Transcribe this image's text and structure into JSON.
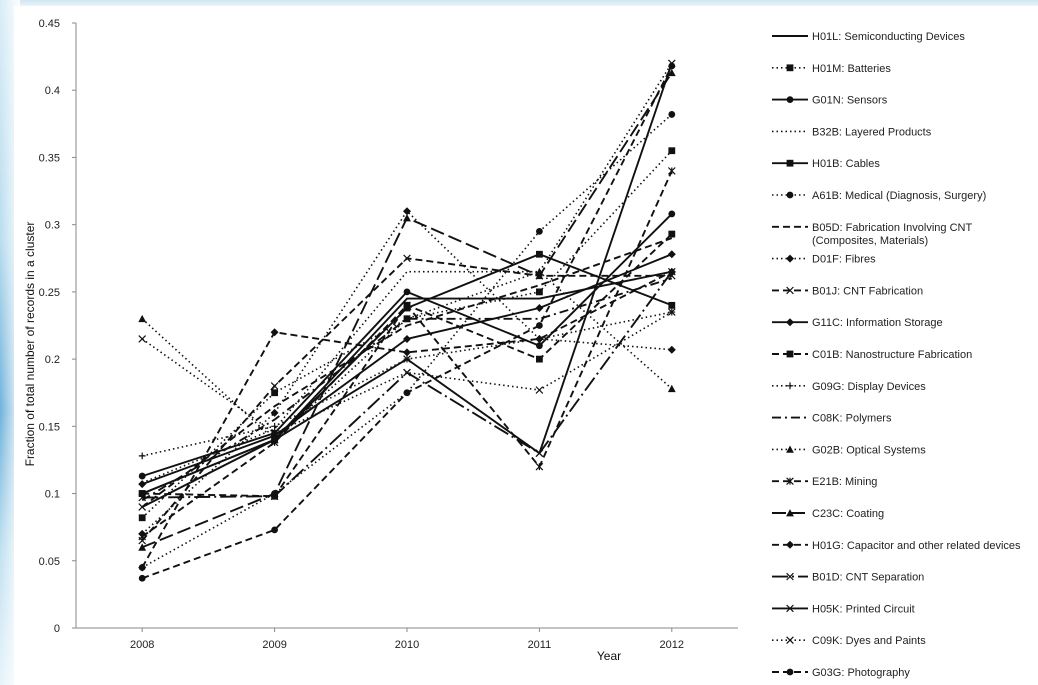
{
  "chart_data": {
    "type": "line",
    "title": "",
    "xlabel": "Year",
    "ylabel": "Fraction of total number of records in a cluster",
    "x": [
      "2008",
      "2009",
      "2010",
      "2011",
      "2012"
    ],
    "ylim": [
      0,
      0.45
    ],
    "yticks": [
      "0",
      "0.05",
      "0.1",
      "0.15",
      "0.2",
      "0.25",
      "0.3",
      "0.35",
      "0.4",
      "0.45"
    ],
    "grid": false,
    "legend_position": "right",
    "series": [
      {
        "name": "H01L: Semiconducting Devices",
        "dash": "solid",
        "marker": "none",
        "values": [
          0.1,
          0.14,
          0.245,
          0.245,
          0.265
        ]
      },
      {
        "name": "H01M: Batteries",
        "dash": "dot",
        "marker": "square",
        "values": [
          0.082,
          0.175,
          0.23,
          0.25,
          0.355
        ]
      },
      {
        "name": "G01N: Sensors",
        "dash": "solid",
        "marker": "circle",
        "values": [
          0.113,
          0.145,
          0.25,
          0.21,
          0.308
        ]
      },
      {
        "name": "B32B: Layered Products",
        "dash": "dot",
        "marker": "none",
        "values": [
          0.108,
          0.148,
          0.265,
          0.265,
          0.42
        ]
      },
      {
        "name": "H01B: Cables",
        "dash": "solid",
        "marker": "square",
        "values": [
          0.1,
          0.14,
          0.238,
          0.278,
          0.24
        ]
      },
      {
        "name": "A61B: Medical (Diagnosis, Surgery)",
        "dash": "dot",
        "marker": "circle",
        "values": [
          0.045,
          0.1,
          0.175,
          0.295,
          0.382
        ]
      },
      {
        "name": "B05D: Fabrication Involving CNT (Composites, Materials)",
        "dash": "dash",
        "marker": "none",
        "values": [
          0.09,
          0.165,
          0.225,
          0.255,
          0.29
        ]
      },
      {
        "name": "D01F: Fibres",
        "dash": "dot",
        "marker": "diamond",
        "values": [
          0.07,
          0.16,
          0.31,
          0.215,
          0.207
        ]
      },
      {
        "name": "B01J: CNT Fabrication",
        "dash": "dash",
        "marker": "x",
        "values": [
          0.065,
          0.18,
          0.275,
          0.262,
          0.262
        ]
      },
      {
        "name": "G11C: Information Storage",
        "dash": "solid",
        "marker": "diamond",
        "values": [
          0.107,
          0.143,
          0.215,
          0.238,
          0.278
        ]
      },
      {
        "name": "C01B: Nanostructure Fabrication",
        "dash": "dash",
        "marker": "square",
        "values": [
          0.1,
          0.098,
          0.24,
          0.2,
          0.293
        ]
      },
      {
        "name": "G09G: Display Devices",
        "dash": "dot",
        "marker": "plus",
        "values": [
          0.128,
          0.15,
          0.2,
          0.215,
          0.235
        ]
      },
      {
        "name": "C08K: Polymers",
        "dash": "dashdot",
        "marker": "none",
        "values": [
          0.095,
          0.155,
          0.23,
          0.23,
          0.26
        ]
      },
      {
        "name": "G02B: Optical Systems",
        "dash": "dot",
        "marker": "triangle",
        "values": [
          0.23,
          0.14,
          0.23,
          0.265,
          0.178
        ]
      },
      {
        "name": "E21B: Mining",
        "dash": "dash",
        "marker": "star",
        "values": [
          0.068,
          0.138,
          0.24,
          0.12,
          0.34
        ]
      },
      {
        "name": "C23C: Coating",
        "dash": "longdash",
        "marker": "triangle",
        "values": [
          0.06,
          0.1,
          0.305,
          0.262,
          0.413
        ]
      },
      {
        "name": "H01G: Capacitor and other related devices",
        "dash": "dash",
        "marker": "diamond",
        "values": [
          0.045,
          0.22,
          0.205,
          0.215,
          0.265
        ]
      },
      {
        "name": "B01D: CNT Separation",
        "dash": "longdashdot",
        "marker": "x",
        "values": [
          0.097,
          0.098,
          0.19,
          0.13,
          0.265
        ]
      },
      {
        "name": "H05K: Printed Circuit",
        "dash": "solid",
        "marker": "x",
        "values": [
          0.09,
          0.14,
          0.2,
          0.13,
          0.42
        ]
      },
      {
        "name": "C09K: Dyes and Paints",
        "dash": "dot",
        "marker": "x",
        "values": [
          0.215,
          0.145,
          0.19,
          0.177,
          0.235
        ]
      },
      {
        "name": "G03G: Photography",
        "dash": "dash",
        "marker": "circle",
        "values": [
          0.037,
          0.073,
          0.175,
          0.225,
          0.418
        ]
      }
    ]
  }
}
